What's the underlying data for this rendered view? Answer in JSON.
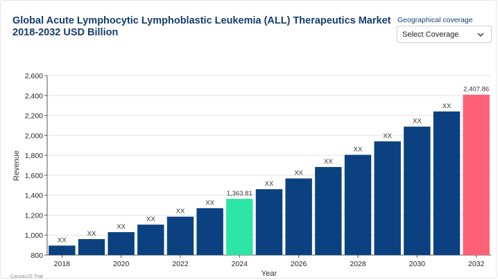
{
  "header": {
    "title": "Global Acute Lymphocytic Lymphoblastic Leukemia (ALL) Therapeutics Market 2018-2032 USD Billion",
    "geo_label": "Geographical coverage",
    "select_value": "Select Coverage"
  },
  "credit": "CanvasJS Trial",
  "colors": {
    "bar": "#0b4180",
    "highlight_current": "#2de6a6",
    "highlight_forecast": "#fd5f77",
    "title": "#143d6e"
  },
  "chart_data": {
    "type": "bar",
    "xlabel": "Year",
    "ylabel": "Revenue",
    "ylim": [
      800,
      2600
    ],
    "y_ticks": [
      "800",
      "1,000",
      "1,200",
      "1,400",
      "1,600",
      "1,800",
      "2,000",
      "2,200",
      "2,400",
      "2,600"
    ],
    "x_ticks": [
      "2018",
      "2020",
      "2022",
      "2024",
      "2026",
      "2028",
      "2030",
      "2032"
    ],
    "categories": [
      "2018",
      "2019",
      "2020",
      "2021",
      "2022",
      "2023",
      "2024",
      "2025",
      "2026",
      "2027",
      "2028",
      "2029",
      "2030",
      "2031",
      "2032"
    ],
    "values": [
      895,
      960,
      1030,
      1105,
      1185,
      1270,
      1363.81,
      1460,
      1568,
      1683,
      1805,
      1940,
      2088,
      2240,
      2407.86
    ],
    "labels": [
      "XX",
      "XX",
      "XX",
      "XX",
      "XX",
      "XX",
      "1,363.81",
      "XX",
      "XX",
      "XX",
      "XX",
      "XX",
      "XX",
      "XX",
      "2,407.86"
    ],
    "highlights": {
      "2024": "highlight_current",
      "2032": "highlight_forecast"
    },
    "grid": true,
    "legend": "none"
  }
}
